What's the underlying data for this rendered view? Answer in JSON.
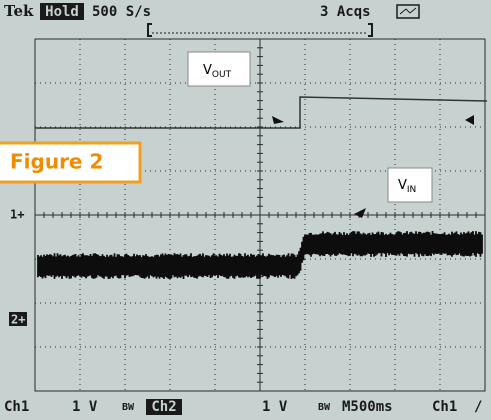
{
  "header": {
    "brand": "Tek",
    "mode": "Hold",
    "rate": "500 S/s",
    "acquisitions": "3 Acqs"
  },
  "labels": {
    "vout": {
      "main": "V",
      "sub": "OUT"
    },
    "vin": {
      "main": "V",
      "sub": "IN"
    },
    "figure": "Figure 2"
  },
  "markers": {
    "ch1": "1+",
    "ch2": "2+"
  },
  "footer": {
    "ch1_name": "Ch1",
    "ch1_scale": "1 V",
    "ch1_bw": "BW",
    "ch2_name": "Ch2",
    "ch2_scale": "1 V",
    "ch2_bw": "BW",
    "timebase": "M500ms",
    "trigger_source": "Ch1",
    "trigger_slope": "/"
  }
}
